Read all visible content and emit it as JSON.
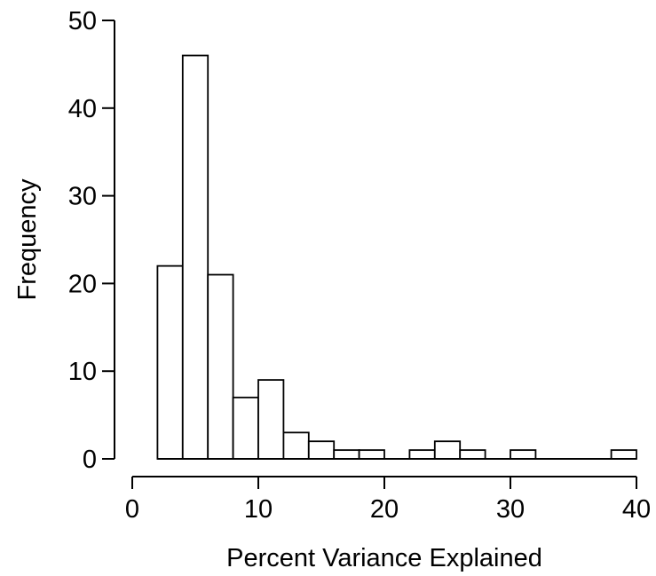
{
  "chart_data": {
    "type": "bar",
    "subtype": "histogram",
    "title": "",
    "xlabel": "Percent Variance Explained",
    "ylabel": "Frequency",
    "xlim": [
      0,
      40
    ],
    "ylim": [
      0,
      50
    ],
    "x_ticks": [
      0,
      10,
      20,
      30,
      40
    ],
    "y_ticks": [
      0,
      10,
      20,
      30,
      40,
      50
    ],
    "grid": false,
    "legend": "none",
    "bin_width": 2,
    "bins": [
      {
        "start": 2,
        "end": 4,
        "value": 22
      },
      {
        "start": 4,
        "end": 6,
        "value": 46
      },
      {
        "start": 6,
        "end": 8,
        "value": 21
      },
      {
        "start": 8,
        "end": 10,
        "value": 7
      },
      {
        "start": 10,
        "end": 12,
        "value": 9
      },
      {
        "start": 12,
        "end": 14,
        "value": 3
      },
      {
        "start": 14,
        "end": 16,
        "value": 2
      },
      {
        "start": 16,
        "end": 18,
        "value": 1
      },
      {
        "start": 18,
        "end": 20,
        "value": 1
      },
      {
        "start": 20,
        "end": 22,
        "value": 0
      },
      {
        "start": 22,
        "end": 24,
        "value": 1
      },
      {
        "start": 24,
        "end": 26,
        "value": 2
      },
      {
        "start": 26,
        "end": 28,
        "value": 1
      },
      {
        "start": 28,
        "end": 30,
        "value": 0
      },
      {
        "start": 30,
        "end": 32,
        "value": 1
      },
      {
        "start": 32,
        "end": 34,
        "value": 0
      },
      {
        "start": 34,
        "end": 36,
        "value": 0
      },
      {
        "start": 36,
        "end": 38,
        "value": 0
      },
      {
        "start": 38,
        "end": 40,
        "value": 1
      }
    ],
    "colors": {
      "bar_fill": "#ffffff",
      "bar_stroke": "#000000",
      "axis": "#000000",
      "text": "#000000"
    }
  }
}
